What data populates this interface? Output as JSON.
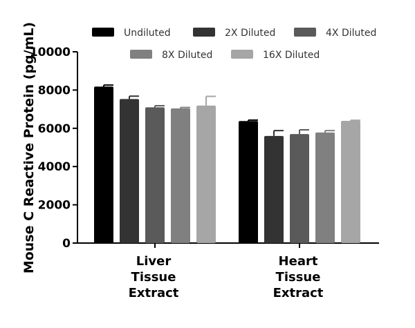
{
  "chart_data": {
    "type": "bar",
    "title": "",
    "xlabel": "",
    "ylabel": "Mouse C Reactive Protein (pg/mL)",
    "ylim": [
      0,
      10000
    ],
    "yticks": [
      0,
      2000,
      4000,
      6000,
      8000,
      10000
    ],
    "ytick_labels": [
      "0",
      "2000",
      "4000",
      "6000",
      "8000",
      "10000"
    ],
    "categories": [
      [
        "Liver",
        "Tissue",
        "Extract"
      ],
      [
        "Heart",
        "Tissue",
        "Extract"
      ]
    ],
    "series": [
      {
        "name": "Undiluted",
        "color": "#000000",
        "values": [
          8180,
          6380
        ],
        "errors": [
          80,
          50
        ]
      },
      {
        "name": "2X Diluted",
        "color": "#333333",
        "values": [
          7530,
          5600
        ],
        "errors": [
          150,
          280
        ]
      },
      {
        "name": "4X Diluted",
        "color": "#5a5a5a",
        "values": [
          7100,
          5700
        ],
        "errors": [
          80,
          220
        ]
      },
      {
        "name": "8X Diluted",
        "color": "#808080",
        "values": [
          7040,
          5780
        ],
        "errors": [
          50,
          100
        ]
      },
      {
        "name": "16X Diluted",
        "color": "#a6a6a6",
        "values": [
          7190,
          6390
        ],
        "errors": [
          480,
          30
        ]
      }
    ],
    "legend_position": "top",
    "grid": false
  }
}
